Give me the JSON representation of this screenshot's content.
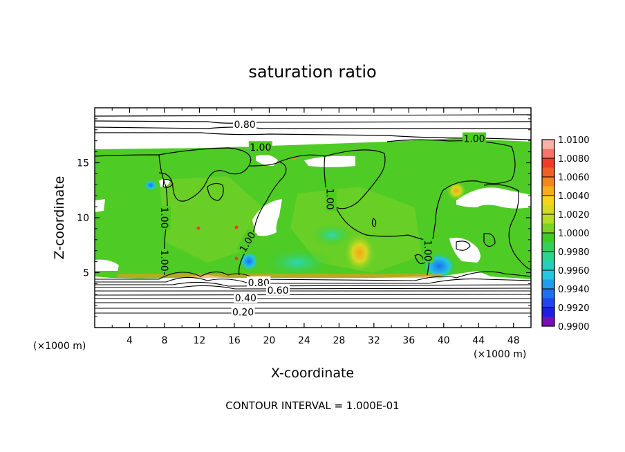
{
  "chart_data": {
    "type": "heatmap",
    "title": "saturation ratio",
    "xlabel": "X-coordinate",
    "ylabel": "Z-coordinate",
    "x_unit_note": "(×1000 m)",
    "x_unit_note_right": "(×1000 m)",
    "xlim": [
      0,
      50
    ],
    "ylim": [
      0,
      20
    ],
    "x_ticks": [
      4,
      8,
      12,
      16,
      20,
      24,
      28,
      32,
      36,
      40,
      44,
      48
    ],
    "y_ticks": [
      5,
      10,
      15
    ],
    "colorbar": {
      "levels": [
        "1.0100",
        "1.0080",
        "1.0060",
        "1.0040",
        "1.0020",
        "1.0000",
        "0.9980",
        "0.9960",
        "0.9940",
        "0.9920",
        "0.9900"
      ],
      "colors": [
        "#f9b0a8",
        "#f03a2a",
        "#f4861c",
        "#f6d41a",
        "#b7dd20",
        "#3ecb23",
        "#2ad68f",
        "#22c8e2",
        "#1e6ff3",
        "#1e1ee6",
        "#7a0db5"
      ]
    },
    "contour_labels": [
      {
        "text": "0.80",
        "x": 17.2,
        "z": 18.5
      },
      {
        "text": "1.00",
        "x": 19.0,
        "z": 16.4
      },
      {
        "text": "1.00",
        "x": 43.5,
        "z": 17.2
      },
      {
        "text": "1.00",
        "x": 8.0,
        "z": 10.0
      },
      {
        "text": "1.00",
        "x": 8.0,
        "z": 6.1
      },
      {
        "text": "1.00",
        "x": 17.5,
        "z": 7.8
      },
      {
        "text": "1.00",
        "x": 27.0,
        "z": 11.7
      },
      {
        "text": "1.00",
        "x": 38.2,
        "z": 7.0
      },
      {
        "text": "0.80",
        "x": 18.8,
        "z": 4.1
      },
      {
        "text": "0.60",
        "x": 21.0,
        "z": 3.4
      },
      {
        "text": "0.40",
        "x": 17.3,
        "z": 2.7
      },
      {
        "text": "0.20",
        "x": 17.0,
        "z": 1.4
      }
    ],
    "contour_interval_text": "CONTOUR INTERVAL = 1.000E-01"
  }
}
